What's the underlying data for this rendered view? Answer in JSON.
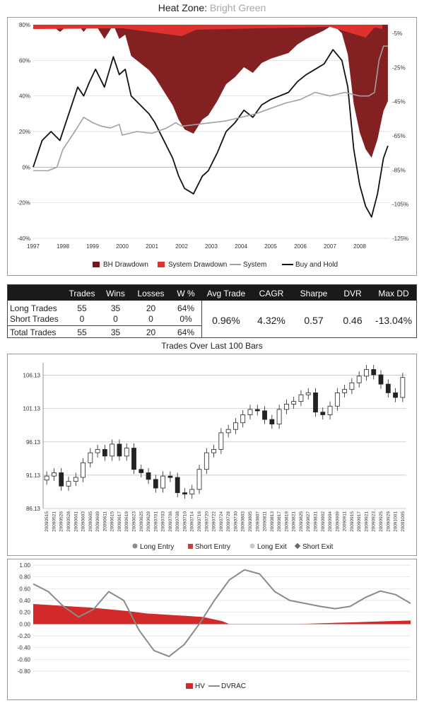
{
  "title": {
    "prefix": "Heat Zone:",
    "zone": "Bright Green"
  },
  "colors": {
    "bh_drawdown": "#7b1416",
    "system_drawdown": "#e0312f",
    "system": "#a0a0a0",
    "buy_and_hold": "#111111",
    "system_step": "#4a90b8",
    "long_entry": "#8c8c8c",
    "short_entry": "#d23a3a",
    "long_exit": "#c8c8c8",
    "short_exit": "#6a6a6a",
    "hv": "#d22a2a",
    "dvrac": "#8a8a8a"
  },
  "chart_data": [
    {
      "type": "line",
      "x_ticks": [
        "1997",
        "1998",
        "1999",
        "2000",
        "2001",
        "2002",
        "2003",
        "2004",
        "2005",
        "2006",
        "2007",
        "2008"
      ],
      "y_left_ticks": [
        "80%",
        "60%",
        "40%",
        "20%",
        "0%",
        "-20%",
        "-40%"
      ],
      "y_left_lim": [
        -40,
        80
      ],
      "y_right_ticks": [
        "-5%",
        "-25%",
        "-45%",
        "-65%",
        "-85%",
        "-105%",
        "-125%"
      ],
      "y_right_lim": [
        -125,
        0
      ],
      "legend": [
        "BH Drawdown",
        "System Drawdown",
        "System",
        "Buy and Hold"
      ],
      "legend_position": "bottom",
      "series": [
        {
          "name": "Buy and Hold",
          "x": [
            1997.0,
            1997.3,
            1997.6,
            1997.9,
            1998.2,
            1998.5,
            1998.7,
            1998.9,
            1999.1,
            1999.4,
            1999.7,
            1999.9,
            2000.1,
            2000.3,
            2000.6,
            2000.9,
            2001.1,
            2001.4,
            2001.7,
            2001.9,
            2002.1,
            2002.4,
            2002.7,
            2002.9,
            2003.2,
            2003.5,
            2003.8,
            2004.1,
            2004.4,
            2004.7,
            2005.0,
            2005.3,
            2005.6,
            2005.9,
            2006.2,
            2006.5,
            2006.8,
            2007.1,
            2007.4,
            2007.6,
            2007.8,
            2008.0,
            2008.2,
            2008.4,
            2008.6,
            2008.8,
            2008.95
          ],
          "y": [
            0,
            15,
            20,
            15,
            30,
            45,
            40,
            48,
            55,
            45,
            62,
            52,
            55,
            40,
            35,
            30,
            25,
            15,
            5,
            -5,
            -12,
            -15,
            -5,
            -2,
            8,
            20,
            25,
            32,
            28,
            35,
            38,
            40,
            42,
            48,
            52,
            55,
            58,
            66,
            60,
            45,
            10,
            -10,
            -22,
            -28,
            -15,
            5,
            12
          ]
        },
        {
          "name": "System",
          "x": [
            1997.0,
            1997.5,
            1997.8,
            1998.0,
            1998.4,
            1998.7,
            1999.0,
            1999.3,
            1999.6,
            1999.9,
            2000.0,
            2000.5,
            2001.0,
            2001.5,
            2001.8,
            2002.0,
            2002.5,
            2003.0,
            2003.5,
            2004.0,
            2004.5,
            2005.0,
            2005.5,
            2006.0,
            2006.5,
            2007.0,
            2007.5,
            2008.0,
            2008.3,
            2008.5,
            2008.65,
            2008.8,
            2008.95
          ],
          "y": [
            -2,
            -2,
            0,
            10,
            20,
            28,
            25,
            23,
            22,
            24,
            18,
            20,
            19,
            22,
            25,
            23,
            24,
            25,
            26,
            28,
            30,
            33,
            36,
            38,
            42,
            40,
            42,
            40,
            40,
            42,
            60,
            68,
            68
          ]
        }
      ]
    },
    {
      "type": "bar",
      "title": "Trades Over Last 100 Bars",
      "y_ticks": [
        "106.13",
        "101.13",
        "96.13",
        "91.13",
        "86.13"
      ],
      "ylim": [
        86.13,
        108
      ],
      "x_labels": [
        "20090515",
        "20090521",
        "20090526",
        "20090528",
        "20090601",
        "20090603",
        "20090605",
        "20090609",
        "20090611",
        "20090615",
        "20090617",
        "20090619",
        "20090623",
        "20090625",
        "20090629",
        "20090701",
        "20090703",
        "20090706",
        "20090708",
        "20090710",
        "20090714",
        "20090716",
        "20090720",
        "20090722",
        "20090724",
        "20090728",
        "20090730",
        "20090803",
        "20090805",
        "20090807",
        "20090811",
        "20090813",
        "20090817",
        "20090819",
        "20090821",
        "20090825",
        "20090827",
        "20090831",
        "20090902",
        "20090904",
        "20090909",
        "20090911",
        "20090915",
        "20090917",
        "20090921",
        "20090923",
        "20090925",
        "20090929",
        "20091001",
        "20091005"
      ],
      "closes": [
        91.0,
        91.5,
        89.5,
        90.2,
        90.8,
        93.0,
        94.5,
        95.0,
        94.0,
        95.8,
        94.0,
        95.2,
        92.0,
        91.5,
        90.5,
        89.2,
        91.0,
        90.8,
        88.5,
        88.3,
        89.0,
        92.0,
        94.5,
        95.0,
        97.5,
        98.0,
        99.0,
        100.2,
        101.0,
        100.8,
        99.5,
        98.8,
        101.0,
        101.8,
        102.2,
        103.2,
        103.5,
        100.6,
        100.2,
        101.5,
        103.5,
        104.0,
        105.0,
        106.0,
        107.0,
        106.2,
        104.8,
        103.5,
        102.8,
        105.8
      ],
      "legend": [
        "Long Entry",
        "Short Entry",
        "Long Exit",
        "Short Exit"
      ],
      "legend_position": "bottom"
    },
    {
      "type": "area",
      "y_ticks": [
        "1.00",
        "0.80",
        "0.60",
        "0.40",
        "0.20",
        "0.00",
        "-0.20",
        "-0.40",
        "-0.60",
        "-0.80"
      ],
      "ylim": [
        -0.8,
        1.0
      ],
      "legend": [
        "HV",
        "DVRAC"
      ],
      "legend_position": "bottom",
      "series": [
        {
          "name": "HV",
          "x": [
            0,
            5,
            10,
            15,
            20,
            25,
            30,
            35,
            40,
            45,
            50,
            52,
            55,
            60,
            65,
            70,
            75,
            80,
            85,
            90,
            95,
            100
          ],
          "y": [
            0.34,
            0.32,
            0.3,
            0.28,
            0.25,
            0.22,
            0.18,
            0.16,
            0.14,
            0.12,
            0.05,
            0.0,
            0.0,
            0.0,
            0.0,
            0.0,
            0.01,
            0.02,
            0.03,
            0.04,
            0.05,
            0.06
          ]
        },
        {
          "name": "DVRAC",
          "x": [
            0,
            4,
            8,
            12,
            16,
            20,
            24,
            28,
            32,
            36,
            40,
            44,
            48,
            52,
            56,
            60,
            64,
            68,
            72,
            76,
            80,
            84,
            88,
            92,
            96,
            100
          ],
          "y": [
            0.68,
            0.55,
            0.3,
            0.12,
            0.25,
            0.55,
            0.4,
            -0.1,
            -0.45,
            -0.55,
            -0.35,
            0.0,
            0.4,
            0.75,
            0.92,
            0.85,
            0.55,
            0.4,
            0.35,
            0.3,
            0.26,
            0.3,
            0.45,
            0.56,
            0.5,
            0.35
          ]
        }
      ]
    }
  ],
  "stats": {
    "headers": [
      "Trades",
      "Wins",
      "Losses",
      "W %",
      "Avg Trade",
      "CAGR",
      "Sharpe",
      "DVR",
      "Max DD"
    ],
    "rows": [
      {
        "label": "Long Trades",
        "trades": "55",
        "wins": "35",
        "losses": "20",
        "wpct": "64%"
      },
      {
        "label": "Short Trades",
        "trades": "0",
        "wins": "0",
        "losses": "0",
        "wpct": "0%"
      },
      {
        "label": "Total Trades",
        "trades": "55",
        "wins": "35",
        "losses": "20",
        "wpct": "64%"
      }
    ],
    "summary": {
      "avg_trade": "0.96%",
      "cagr": "4.32%",
      "sharpe": "0.57",
      "dvr": "0.46",
      "max_dd": "-13.04%"
    }
  }
}
